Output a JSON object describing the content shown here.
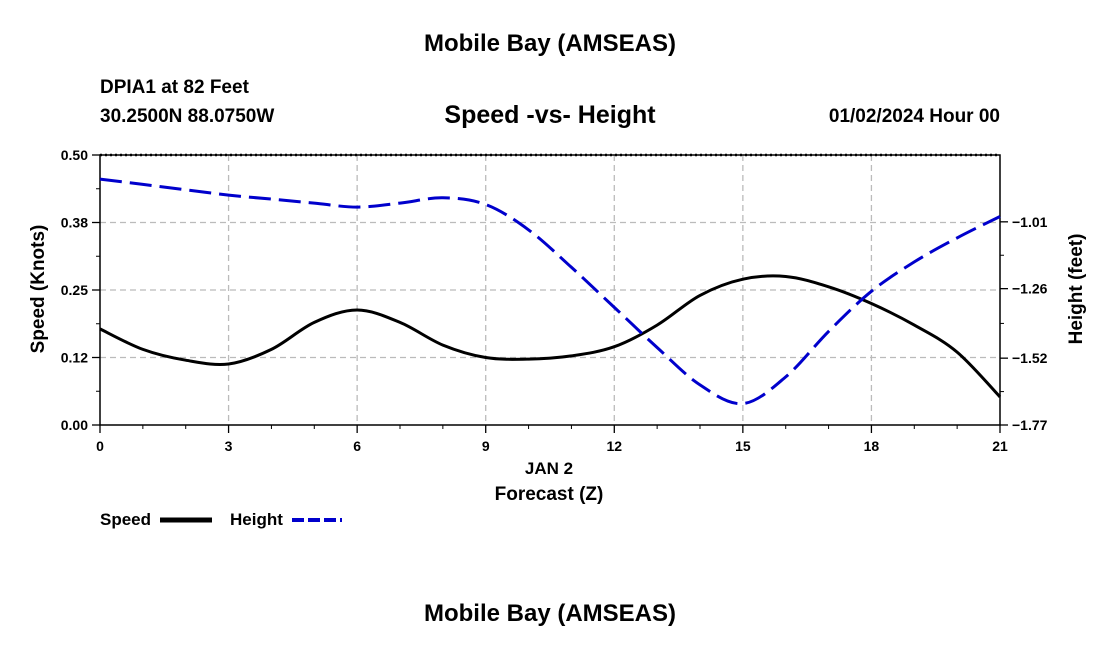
{
  "header": {
    "title": "Mobile Bay (AMSEAS)",
    "station": "DPIA1 at 82 Feet",
    "coordinates": "30.2500N  88.0750W",
    "subtitle": "Speed -vs- Height",
    "datetime": "01/02/2024 Hour 00"
  },
  "footer": {
    "title": "Mobile Bay (AMSEAS)"
  },
  "chart_data": {
    "type": "line",
    "title": "Speed -vs- Height",
    "xlabel": "Forecast (Z)",
    "xdate": "JAN 2",
    "ylabel": "Speed (Knots)",
    "y2label": "Height (feet)",
    "xlim": [
      0,
      21
    ],
    "ylim": [
      0,
      0.5
    ],
    "y2lim": [
      -1.77,
      -0.76
    ],
    "xticks": [
      0,
      3,
      6,
      9,
      12,
      15,
      18,
      21
    ],
    "xtick_labels": [
      "0",
      "3",
      "6",
      "9",
      "12",
      "15",
      "18",
      "21"
    ],
    "yticks": [
      0.0,
      0.125,
      0.25,
      0.375,
      0.5
    ],
    "ytick_labels": [
      "0.00",
      "0.12",
      "0.25",
      "0.38",
      "0.50"
    ],
    "y2ticks": [
      -1.77,
      -1.52,
      -1.26,
      -1.01
    ],
    "y2tick_labels": [
      "−1.77",
      "−1.52",
      "−1.26",
      "−1.01"
    ],
    "grid": true,
    "colors": {
      "speed": "#000000",
      "height": "#0000cc",
      "grid": "#bbbbbb"
    },
    "series": [
      {
        "name": "Speed",
        "axis": "left",
        "style": "solid",
        "x": [
          0,
          1,
          2,
          3,
          4,
          5,
          6,
          7,
          8,
          9,
          10,
          11,
          12,
          13,
          14,
          15,
          16,
          17,
          18,
          19,
          20,
          21
        ],
        "values": [
          0.178,
          0.14,
          0.12,
          0.113,
          0.14,
          0.19,
          0.213,
          0.19,
          0.148,
          0.125,
          0.122,
          0.128,
          0.145,
          0.185,
          0.24,
          0.27,
          0.275,
          0.256,
          0.225,
          0.185,
          0.135,
          0.052
        ]
      },
      {
        "name": "Height",
        "axis": "right",
        "style": "dashed",
        "x": [
          0,
          1,
          2,
          3,
          4,
          5,
          6,
          7,
          8,
          9,
          10,
          11,
          12,
          13,
          14,
          15,
          16,
          17,
          18,
          19,
          20,
          21
        ],
        "values": [
          -0.85,
          -0.87,
          -0.89,
          -0.91,
          -0.925,
          -0.94,
          -0.955,
          -0.94,
          -0.92,
          -0.945,
          -1.04,
          -1.18,
          -1.33,
          -1.48,
          -1.62,
          -1.69,
          -1.59,
          -1.42,
          -1.27,
          -1.16,
          -1.07,
          -0.99
        ]
      }
    ],
    "legend": {
      "position": "bottom-left",
      "entries": [
        "Speed",
        "Height"
      ]
    }
  }
}
